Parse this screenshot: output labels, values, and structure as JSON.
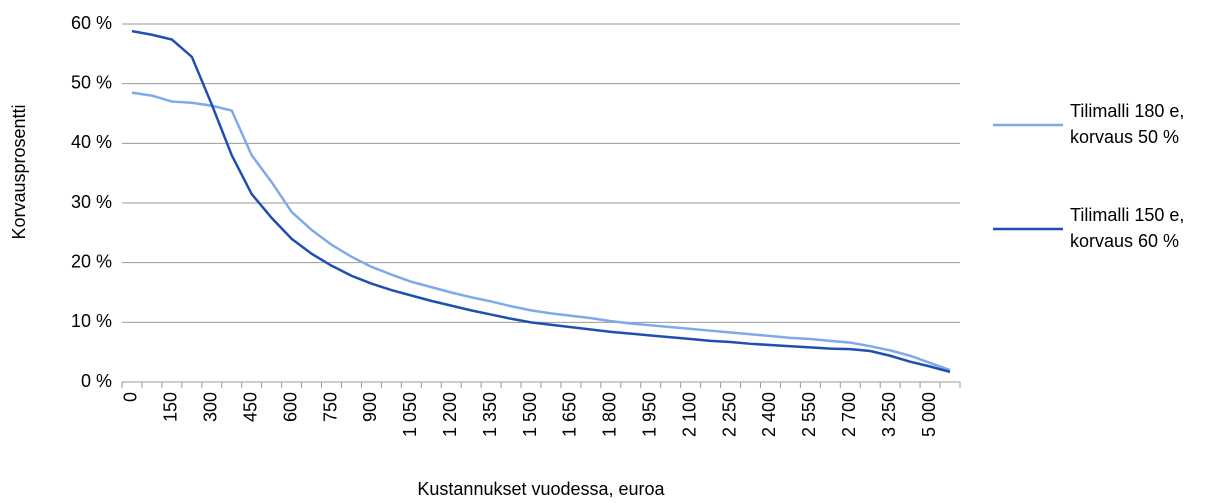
{
  "chart_data": {
    "type": "line",
    "x_label": "Kustannukset vuodessa, euroa",
    "y_label": "Korvausprosentti",
    "categories": [
      "0",
      null,
      "150",
      null,
      "300",
      null,
      "450",
      null,
      "600",
      null,
      "750",
      null,
      "900",
      null,
      "1 050",
      null,
      "1 200",
      null,
      "1 350",
      null,
      "1 500",
      null,
      "1 650",
      null,
      "1 800",
      null,
      "1 950",
      null,
      "2 100",
      null,
      "2 250",
      null,
      "2 400",
      null,
      "2 550",
      null,
      "2 700",
      null,
      "3 250",
      null,
      "5 000",
      null
    ],
    "series": [
      {
        "name": "Tilimalli 180 e, korvaus 50 %",
        "color": "#7eaaea",
        "values": [
          48.5,
          48,
          47,
          46.8,
          46.3,
          45.5,
          38,
          33.5,
          28.5,
          25.5,
          23,
          21,
          19.3,
          18,
          16.8,
          15.9,
          15,
          14.2,
          13.5,
          12.7,
          12,
          11.5,
          11.1,
          10.7,
          10.2,
          9.8,
          9.5,
          9.2,
          8.9,
          8.6,
          8.3,
          8,
          7.7,
          7.4,
          7.2,
          6.9,
          6.6,
          6,
          5.3,
          4.4,
          3.2,
          2
        ]
      },
      {
        "name": "Tilimalli 150 e, korvaus 60 %",
        "color": "#1f4fb0",
        "values": [
          58.8,
          58.2,
          57.4,
          54.5,
          46.5,
          38,
          31.5,
          27.5,
          24,
          21.5,
          19.5,
          17.8,
          16.5,
          15.4,
          14.5,
          13.6,
          12.8,
          12,
          11.3,
          10.6,
          10,
          9.6,
          9.2,
          8.8,
          8.4,
          8.1,
          7.8,
          7.5,
          7.2,
          6.9,
          6.7,
          6.4,
          6.2,
          6,
          5.8,
          5.6,
          5.5,
          5.2,
          4.4,
          3.4,
          2.6,
          1.7
        ]
      }
    ],
    "ylim": [
      0,
      60
    ],
    "yticks": [
      {
        "value": 0,
        "label": "0 %"
      },
      {
        "value": 10,
        "label": "10 %"
      },
      {
        "value": 20,
        "label": "20 %"
      },
      {
        "value": 30,
        "label": "30 %"
      },
      {
        "value": 40,
        "label": "40 %"
      },
      {
        "value": 50,
        "label": "50 %"
      },
      {
        "value": 60,
        "label": "60 %"
      }
    ],
    "grid": true,
    "legend": "right"
  }
}
